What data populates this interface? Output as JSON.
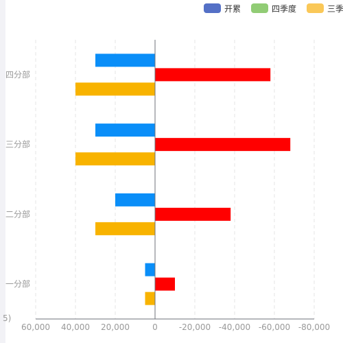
{
  "chart_data": {
    "type": "bar",
    "orientation": "horizontal",
    "categories": [
      "一分部",
      "二分部",
      "三分部",
      "四分部"
    ],
    "series": [
      {
        "name": "开累",
        "color": "#5470c6",
        "bar_color": "#0a8ef8",
        "values": [
          5000,
          20000,
          30000,
          30000
        ]
      },
      {
        "name": "四季度",
        "color": "#91cc75",
        "bar_color": "#ff0000",
        "values": [
          -10000,
          -38000,
          -68000,
          -58000
        ]
      },
      {
        "name": "三季度",
        "color": "#fac858",
        "bar_color": "#f8b300",
        "values": [
          5000,
          30000,
          40000,
          40000
        ]
      }
    ],
    "xlim": [
      60000,
      -80000
    ],
    "x_ticks": [
      60000,
      40000,
      20000,
      0,
      -20000,
      -40000,
      -60000,
      -80000
    ],
    "x_tick_labels": [
      "60,000",
      "40,000",
      "20,000",
      "0",
      "-20,000",
      "-40,000",
      "-60,000",
      "-80,000"
    ],
    "axis_corner_label": "5)",
    "grid": "vertical-dashed",
    "legend_position": "top-right"
  }
}
